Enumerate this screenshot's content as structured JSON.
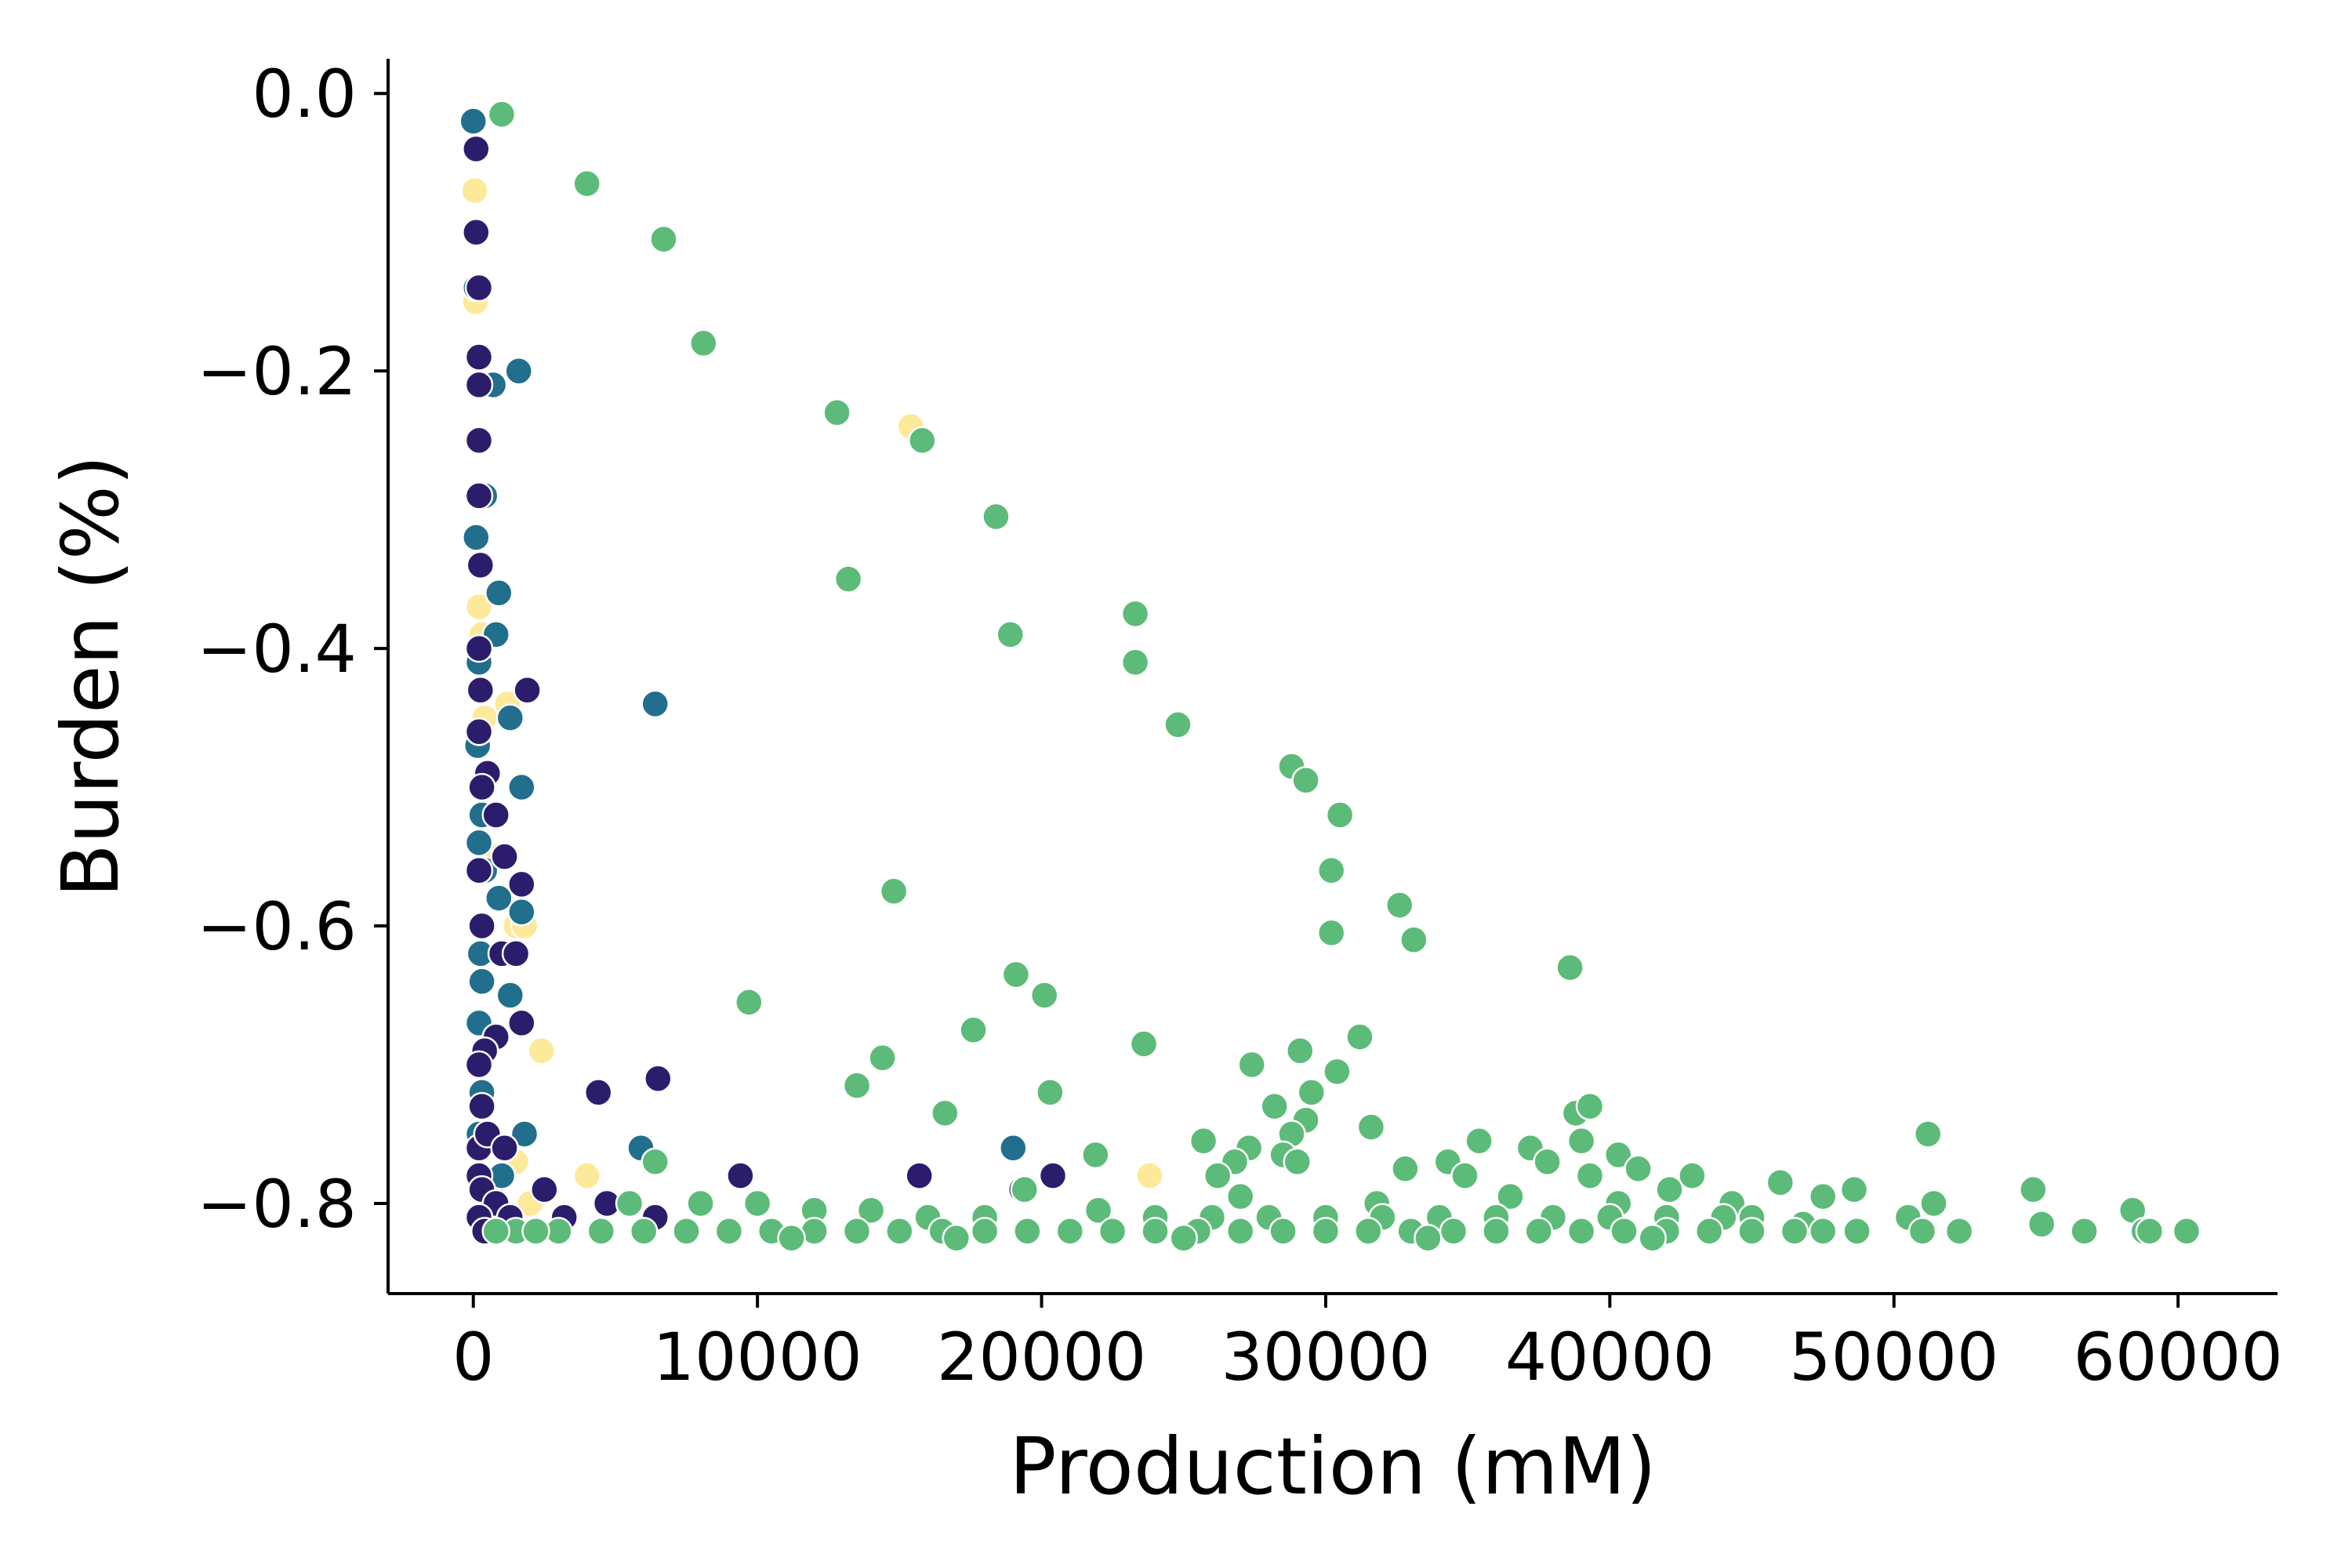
{
  "chart_data": {
    "type": "scatter",
    "xlabel": "Production (mM)",
    "ylabel": "Burden (%)",
    "xlim": [
      -3000,
      63500
    ],
    "ylim": [
      -0.865,
      0.025
    ],
    "x_ticks": [
      0,
      10000,
      20000,
      30000,
      40000,
      50000,
      60000
    ],
    "x_tick_labels": [
      "0",
      "10000",
      "20000",
      "30000",
      "40000",
      "50000",
      "60000"
    ],
    "y_ticks": [
      0.0,
      -0.2,
      -0.4,
      -0.6,
      -0.8
    ],
    "y_tick_labels": [
      "0.0",
      "−0.2",
      "−0.4",
      "−0.6",
      "−0.8"
    ],
    "grid": false,
    "series": [
      {
        "color": "#fde99a",
        "points": [
          [
            50,
            -0.07
          ],
          [
            80,
            -0.15
          ],
          [
            120,
            -0.25
          ],
          [
            200,
            -0.37
          ],
          [
            300,
            -0.39
          ],
          [
            400,
            -0.45
          ],
          [
            600,
            -0.52
          ],
          [
            800,
            -0.55
          ],
          [
            1200,
            -0.44
          ],
          [
            1500,
            -0.6
          ],
          [
            1800,
            -0.6
          ],
          [
            1500,
            -0.77
          ],
          [
            2400,
            -0.69
          ],
          [
            15400,
            -0.24
          ],
          [
            23800,
            -0.78
          ],
          [
            4000,
            -0.78
          ],
          [
            2000,
            -0.8
          ],
          [
            300,
            -0.81
          ],
          [
            900,
            -0.82
          ]
        ]
      },
      {
        "color": "#216f8c",
        "points": [
          [
            0,
            -0.02
          ],
          [
            100,
            -0.14
          ],
          [
            1600,
            -0.2
          ],
          [
            700,
            -0.21
          ],
          [
            400,
            -0.29
          ],
          [
            100,
            -0.32
          ],
          [
            900,
            -0.36
          ],
          [
            800,
            -0.39
          ],
          [
            200,
            -0.41
          ],
          [
            1300,
            -0.45
          ],
          [
            150,
            -0.47
          ],
          [
            1700,
            -0.5
          ],
          [
            300,
            -0.52
          ],
          [
            200,
            -0.54
          ],
          [
            400,
            -0.56
          ],
          [
            900,
            -0.58
          ],
          [
            1700,
            -0.59
          ],
          [
            250,
            -0.62
          ],
          [
            300,
            -0.64
          ],
          [
            1300,
            -0.65
          ],
          [
            200,
            -0.67
          ],
          [
            300,
            -0.72
          ],
          [
            1800,
            -0.75
          ],
          [
            6400,
            -0.44
          ],
          [
            5900,
            -0.76
          ],
          [
            19000,
            -0.76
          ],
          [
            600,
            -0.79
          ],
          [
            1000,
            -0.78
          ],
          [
            500,
            -0.81
          ],
          [
            200,
            -0.75
          ]
        ]
      },
      {
        "color": "#2c1d6c",
        "points": [
          [
            100,
            -0.04
          ],
          [
            100,
            -0.1
          ],
          [
            200,
            -0.14
          ],
          [
            200,
            -0.19
          ],
          [
            200,
            -0.21
          ],
          [
            200,
            -0.25
          ],
          [
            200,
            -0.29
          ],
          [
            250,
            -0.34
          ],
          [
            200,
            -0.4
          ],
          [
            250,
            -0.43
          ],
          [
            200,
            -0.46
          ],
          [
            1900,
            -0.43
          ],
          [
            500,
            -0.49
          ],
          [
            300,
            -0.5
          ],
          [
            800,
            -0.52
          ],
          [
            200,
            -0.56
          ],
          [
            1100,
            -0.55
          ],
          [
            1700,
            -0.57
          ],
          [
            300,
            -0.6
          ],
          [
            1000,
            -0.62
          ],
          [
            1500,
            -0.62
          ],
          [
            1700,
            -0.67
          ],
          [
            800,
            -0.68
          ],
          [
            400,
            -0.69
          ],
          [
            200,
            -0.7
          ],
          [
            4400,
            -0.72
          ],
          [
            6500,
            -0.71
          ],
          [
            300,
            -0.73
          ],
          [
            200,
            -0.76
          ],
          [
            500,
            -0.75
          ],
          [
            1100,
            -0.76
          ],
          [
            200,
            -0.78
          ],
          [
            300,
            -0.79
          ],
          [
            800,
            -0.8
          ],
          [
            200,
            -0.81
          ],
          [
            400,
            -0.82
          ],
          [
            1300,
            -0.81
          ],
          [
            2500,
            -0.79
          ],
          [
            3200,
            -0.81
          ],
          [
            4700,
            -0.8
          ],
          [
            6400,
            -0.81
          ],
          [
            9400,
            -0.78
          ],
          [
            15700,
            -0.78
          ],
          [
            19300,
            -0.79
          ],
          [
            20400,
            -0.78
          ]
        ]
      },
      {
        "color": "#5cbb78",
        "points": [
          [
            1000,
            -0.015
          ],
          [
            4000,
            -0.065
          ],
          [
            6700,
            -0.105
          ],
          [
            8100,
            -0.18
          ],
          [
            12800,
            -0.23
          ],
          [
            15800,
            -0.25
          ],
          [
            18400,
            -0.305
          ],
          [
            13200,
            -0.35
          ],
          [
            23300,
            -0.375
          ],
          [
            23300,
            -0.41
          ],
          [
            18900,
            -0.39
          ],
          [
            24800,
            -0.455
          ],
          [
            28800,
            -0.485
          ],
          [
            29300,
            -0.495
          ],
          [
            30500,
            -0.52
          ],
          [
            30200,
            -0.56
          ],
          [
            14800,
            -0.575
          ],
          [
            32600,
            -0.585
          ],
          [
            30200,
            -0.605
          ],
          [
            33100,
            -0.61
          ],
          [
            38600,
            -0.63
          ],
          [
            19100,
            -0.635
          ],
          [
            9700,
            -0.655
          ],
          [
            20100,
            -0.65
          ],
          [
            17600,
            -0.675
          ],
          [
            31200,
            -0.68
          ],
          [
            23600,
            -0.685
          ],
          [
            29100,
            -0.69
          ],
          [
            14400,
            -0.695
          ],
          [
            27400,
            -0.7
          ],
          [
            30400,
            -0.705
          ],
          [
            13500,
            -0.715
          ],
          [
            20300,
            -0.72
          ],
          [
            29500,
            -0.72
          ],
          [
            16600,
            -0.735
          ],
          [
            38800,
            -0.735
          ],
          [
            39300,
            -0.73
          ],
          [
            28200,
            -0.73
          ],
          [
            29300,
            -0.74
          ],
          [
            31600,
            -0.745
          ],
          [
            28800,
            -0.75
          ],
          [
            25700,
            -0.755
          ],
          [
            51200,
            -0.75
          ],
          [
            35400,
            -0.755
          ],
          [
            39000,
            -0.755
          ],
          [
            27300,
            -0.76
          ],
          [
            37200,
            -0.76
          ],
          [
            28500,
            -0.765
          ],
          [
            21900,
            -0.765
          ],
          [
            40300,
            -0.765
          ],
          [
            6400,
            -0.77
          ],
          [
            26800,
            -0.77
          ],
          [
            29000,
            -0.77
          ],
          [
            32800,
            -0.775
          ],
          [
            34300,
            -0.77
          ],
          [
            37800,
            -0.77
          ],
          [
            41000,
            -0.775
          ],
          [
            26200,
            -0.78
          ],
          [
            34900,
            -0.78
          ],
          [
            39300,
            -0.78
          ],
          [
            42900,
            -0.78
          ],
          [
            46000,
            -0.785
          ],
          [
            48600,
            -0.79
          ],
          [
            54900,
            -0.79
          ],
          [
            42100,
            -0.79
          ],
          [
            19400,
            -0.79
          ],
          [
            27000,
            -0.795
          ],
          [
            31800,
            -0.8
          ],
          [
            36500,
            -0.795
          ],
          [
            40300,
            -0.8
          ],
          [
            44300,
            -0.8
          ],
          [
            47500,
            -0.795
          ],
          [
            51400,
            -0.8
          ],
          [
            58400,
            -0.805
          ],
          [
            5500,
            -0.8
          ],
          [
            8000,
            -0.8
          ],
          [
            10000,
            -0.8
          ],
          [
            12000,
            -0.805
          ],
          [
            14000,
            -0.805
          ],
          [
            16000,
            -0.81
          ],
          [
            18000,
            -0.81
          ],
          [
            22000,
            -0.805
          ],
          [
            24000,
            -0.81
          ],
          [
            26000,
            -0.81
          ],
          [
            28000,
            -0.81
          ],
          [
            30000,
            -0.81
          ],
          [
            32000,
            -0.81
          ],
          [
            34000,
            -0.81
          ],
          [
            36000,
            -0.81
          ],
          [
            38000,
            -0.81
          ],
          [
            40000,
            -0.81
          ],
          [
            42000,
            -0.81
          ],
          [
            44000,
            -0.81
          ],
          [
            45000,
            -0.81
          ],
          [
            50500,
            -0.81
          ],
          [
            55200,
            -0.815
          ],
          [
            58800,
            -0.82
          ],
          [
            46800,
            -0.815
          ],
          [
            1500,
            -0.82
          ],
          [
            3000,
            -0.82
          ],
          [
            4500,
            -0.82
          ],
          [
            6000,
            -0.82
          ],
          [
            7500,
            -0.82
          ],
          [
            9000,
            -0.82
          ],
          [
            10500,
            -0.82
          ],
          [
            12000,
            -0.82
          ],
          [
            13500,
            -0.82
          ],
          [
            15000,
            -0.82
          ],
          [
            16500,
            -0.82
          ],
          [
            18000,
            -0.82
          ],
          [
            19500,
            -0.82
          ],
          [
            21000,
            -0.82
          ],
          [
            22500,
            -0.82
          ],
          [
            24000,
            -0.82
          ],
          [
            25500,
            -0.82
          ],
          [
            27000,
            -0.82
          ],
          [
            28500,
            -0.82
          ],
          [
            30000,
            -0.82
          ],
          [
            31500,
            -0.82
          ],
          [
            33000,
            -0.82
          ],
          [
            34500,
            -0.82
          ],
          [
            36000,
            -0.82
          ],
          [
            37500,
            -0.82
          ],
          [
            39000,
            -0.82
          ],
          [
            40500,
            -0.82
          ],
          [
            42000,
            -0.82
          ],
          [
            43500,
            -0.82
          ],
          [
            45000,
            -0.82
          ],
          [
            46500,
            -0.82
          ],
          [
            47500,
            -0.82
          ],
          [
            48700,
            -0.82
          ],
          [
            51000,
            -0.82
          ],
          [
            52300,
            -0.82
          ],
          [
            56700,
            -0.82
          ],
          [
            59000,
            -0.82
          ],
          [
            60300,
            -0.82
          ],
          [
            2200,
            -0.82
          ],
          [
            800,
            -0.82
          ],
          [
            11200,
            -0.825
          ],
          [
            17000,
            -0.825
          ],
          [
            25000,
            -0.825
          ],
          [
            33600,
            -0.825
          ],
          [
            41500,
            -0.825
          ]
        ]
      }
    ]
  }
}
